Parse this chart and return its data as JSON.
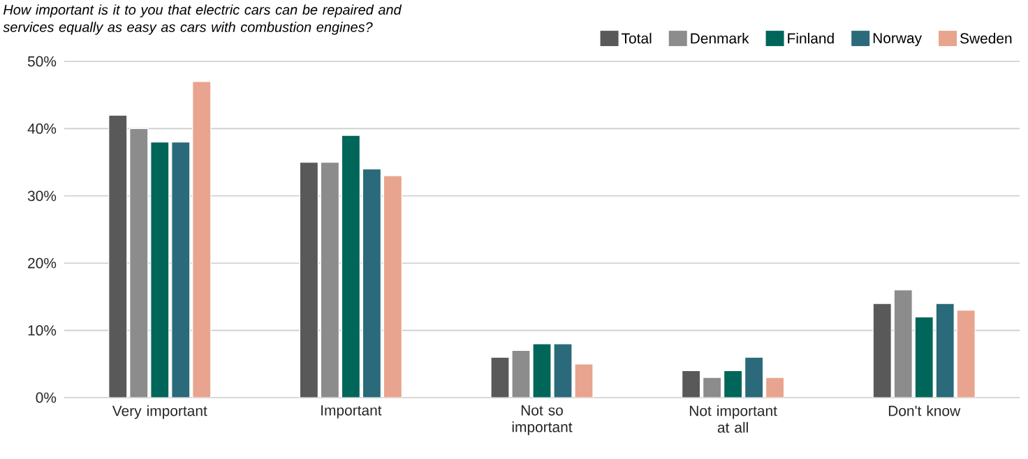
{
  "chart_data": {
    "type": "bar",
    "title": "How important is it to you that electric cars can be repaired and services equally as easy as cars with combustion engines?",
    "categories": [
      "Very important",
      "Important",
      "Not so important",
      "Not important at all",
      "Don't know"
    ],
    "series": [
      {
        "name": "Total",
        "color": "#595959",
        "values": [
          42,
          35,
          6,
          4,
          14
        ]
      },
      {
        "name": "Denmark",
        "color": "#8c8c8c",
        "values": [
          40,
          35,
          7,
          3,
          16
        ]
      },
      {
        "name": "Finland",
        "color": "#00665a",
        "values": [
          38,
          39,
          8,
          4,
          12
        ]
      },
      {
        "name": "Norway",
        "color": "#2a6a7a",
        "values": [
          38,
          34,
          8,
          6,
          14
        ]
      },
      {
        "name": "Sweden",
        "color": "#e8a48e",
        "values": [
          47,
          33,
          5,
          3,
          13
        ]
      }
    ],
    "ylim": [
      0,
      50
    ],
    "yticks": [
      {
        "value": 0,
        "label": "0%"
      },
      {
        "value": 10,
        "label": "10%"
      },
      {
        "value": 20,
        "label": "20%"
      },
      {
        "value": 30,
        "label": "30%"
      },
      {
        "value": 40,
        "label": "40%"
      },
      {
        "value": 50,
        "label": "50%"
      }
    ],
    "grid": "y",
    "legend": "top right"
  }
}
